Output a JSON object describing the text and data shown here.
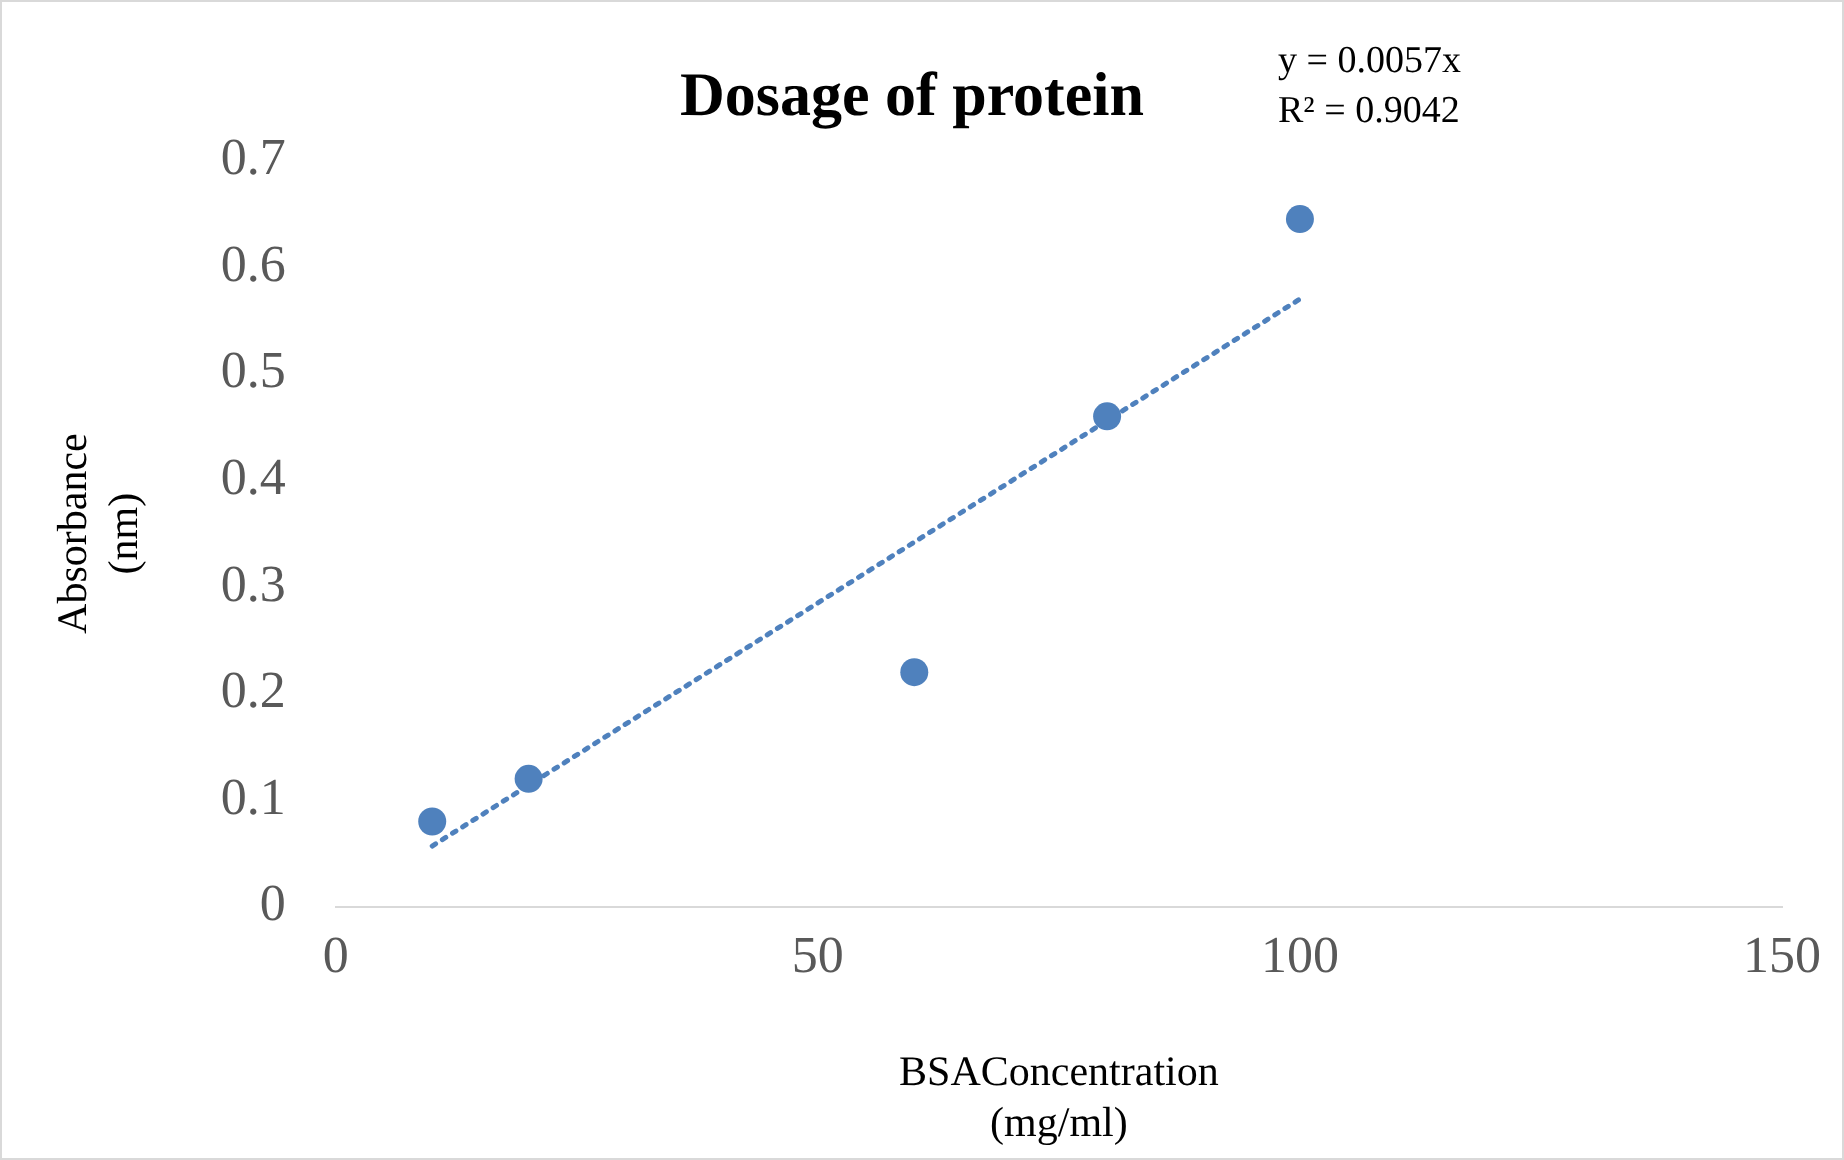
{
  "chart_data": {
    "type": "scatter",
    "title": "Dosage of protein",
    "xlabel": "BSAConcentration\n(mg/ml)",
    "ylabel": "Absorbance\n(nm)",
    "annotations": [
      "y = 0.0057x",
      "R² = 0.9042"
    ],
    "series": [
      {
        "type": "scatter",
        "color": "#4f81bd",
        "x": [
          10,
          20,
          60,
          80,
          100
        ],
        "values": [
          0.08,
          0.12,
          0.22,
          0.46,
          0.645
        ],
        "marker": "circle"
      },
      {
        "type": "line",
        "color": "#4f81bd",
        "x": [
          10,
          100
        ],
        "values": [
          0.057,
          0.57
        ],
        "line_style": "dotted",
        "marker": "none"
      }
    ],
    "xlim": [
      0,
      150
    ],
    "xticks": [
      0,
      50,
      100,
      150
    ],
    "ylim": [
      0,
      0.7
    ],
    "yticks": [
      0,
      0.1,
      0.2,
      0.3,
      0.4,
      0.5,
      0.6,
      0.7
    ],
    "grid": false,
    "legend": false
  }
}
